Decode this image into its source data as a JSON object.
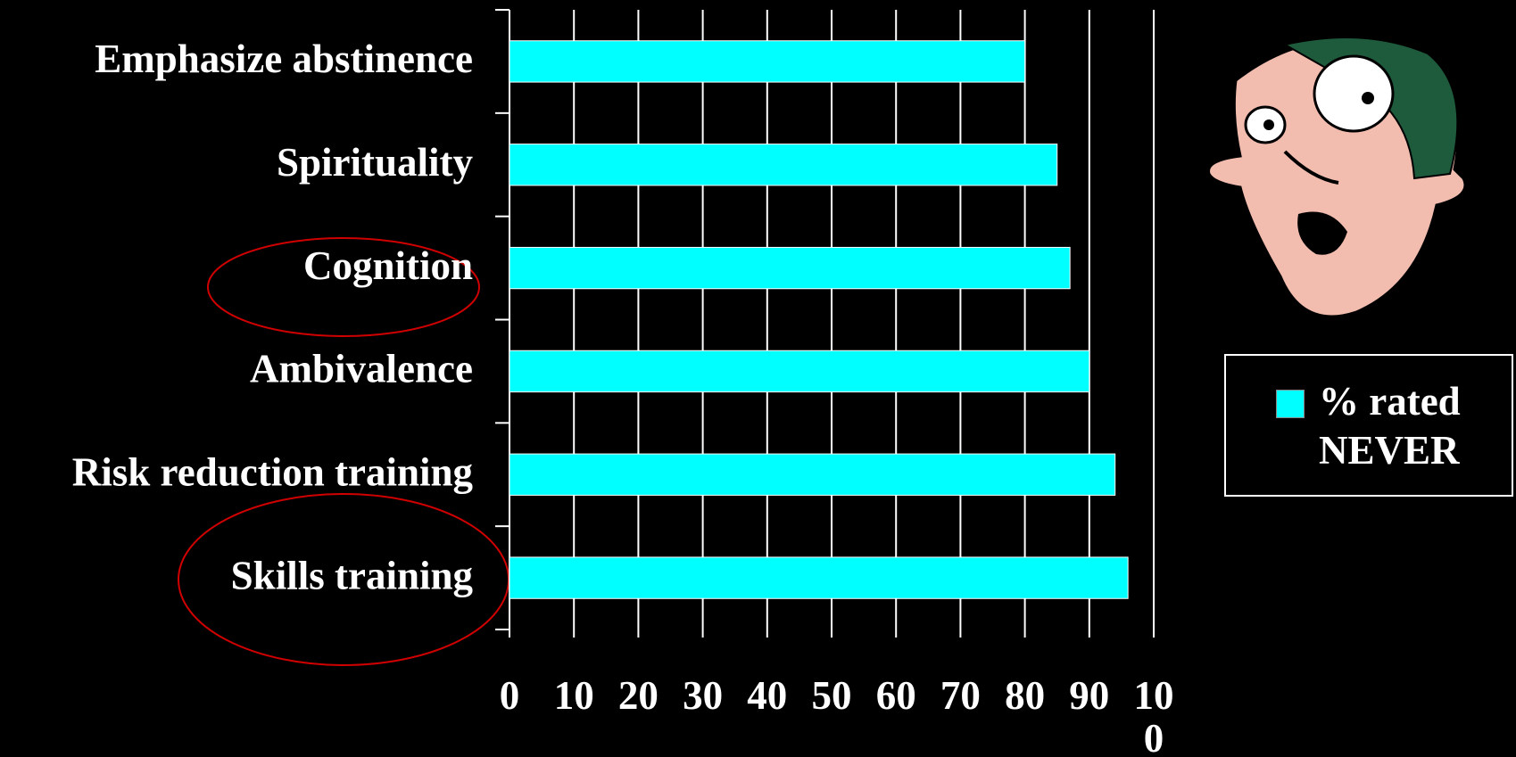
{
  "chart_data": {
    "type": "bar",
    "orientation": "horizontal",
    "categories": [
      "Emphasize abstinence",
      "Spirituality",
      "Cognition",
      "Ambivalence",
      "Risk reduction training",
      "Skills training"
    ],
    "series": [
      {
        "name": "% rated NEVER",
        "color": "#00ffff",
        "values": [
          80,
          85,
          87,
          90,
          94,
          96
        ]
      }
    ],
    "xlim": [
      0,
      100
    ],
    "xticks": [
      0,
      10,
      20,
      30,
      40,
      50,
      60,
      70,
      80,
      90,
      100
    ],
    "grid": true,
    "legend": "right"
  }
}
